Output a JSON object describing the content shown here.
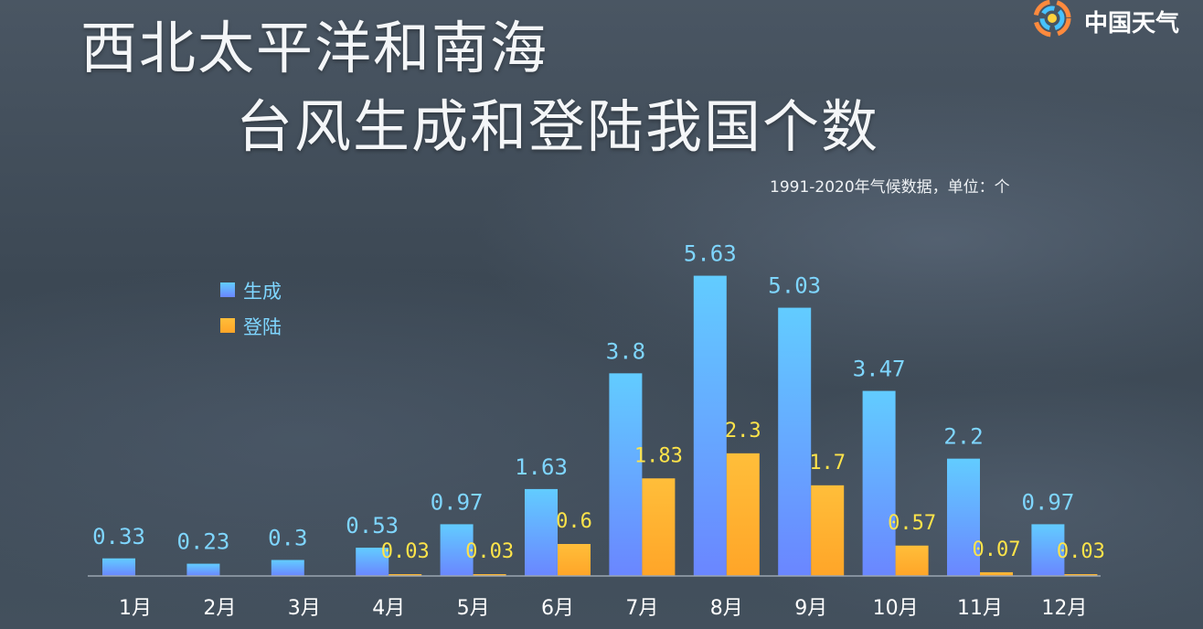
{
  "title_line1": "西北太平洋和南海",
  "title_line2": "台风生成和登陆我国个数",
  "subtitle": "1991-2020年气候数据，单位：个",
  "logo": {
    "text": "中国天气",
    "icon": "china-weather-swirl-icon"
  },
  "colors": {
    "generated": "#5cc6ff",
    "landed": "#ffb12e",
    "generated_label": "#7fd6ff",
    "landed_label": "#ffe44a"
  },
  "chart_data": {
    "type": "bar",
    "categories": [
      "1月",
      "2月",
      "3月",
      "4月",
      "5月",
      "6月",
      "7月",
      "8月",
      "9月",
      "10月",
      "11月",
      "12月"
    ],
    "series": [
      {
        "name": "生成",
        "values": [
          0.33,
          0.23,
          0.3,
          0.53,
          0.97,
          1.63,
          3.8,
          5.63,
          5.03,
          3.47,
          2.2,
          0.97
        ]
      },
      {
        "name": "登陆",
        "values": [
          null,
          null,
          null,
          0.03,
          0.03,
          0.6,
          1.83,
          2.3,
          1.7,
          0.57,
          0.07,
          0.03
        ]
      }
    ],
    "value_labels": {
      "生成": [
        "0.33",
        "0.23",
        "0.3",
        "0.53",
        "0.97",
        "1.63",
        "3.8",
        "5.63",
        "5.03",
        "3.47",
        "2.2",
        "0.97"
      ],
      "登陆": [
        "",
        "",
        "",
        "0.03",
        "0.03",
        "0.6",
        "1.83",
        "2.3",
        "1.7",
        "0.57",
        "0.07",
        "0.03"
      ]
    },
    "ylim": [
      0,
      6
    ],
    "grid": false,
    "legend_position": "top-left"
  }
}
